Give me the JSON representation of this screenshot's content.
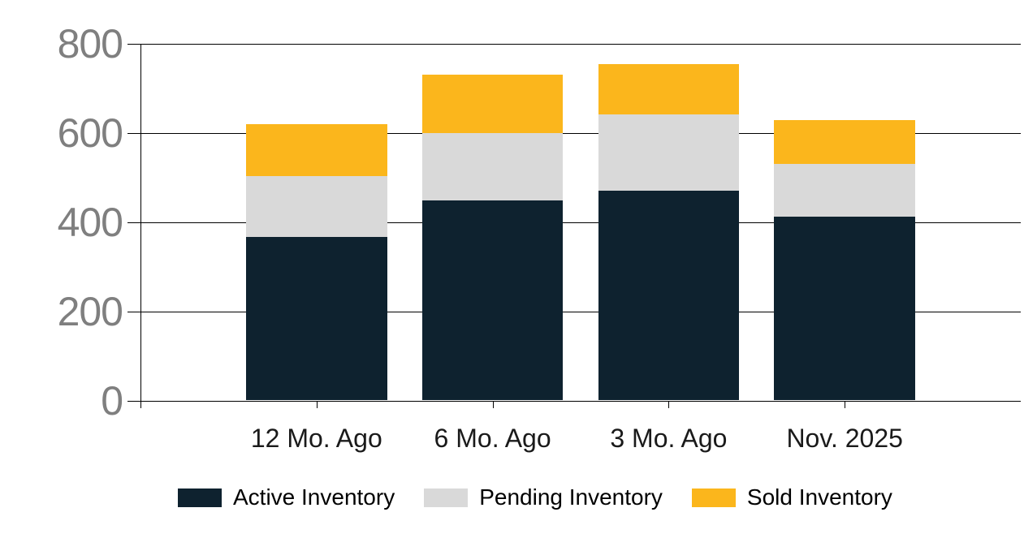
{
  "chart_data": {
    "type": "bar",
    "stacked": true,
    "categories": [
      "12 Mo. Ago",
      "6 Mo. Ago",
      "3 Mo. Ago",
      "Nov. 2025"
    ],
    "series": [
      {
        "name": "Active Inventory",
        "color": "#0E222F",
        "values": [
          367,
          449,
          470,
          412
        ]
      },
      {
        "name": "Pending Inventory",
        "color": "#D9D9D9",
        "values": [
          136,
          151,
          172,
          119
        ]
      },
      {
        "name": "Sold Inventory",
        "color": "#FBB61C",
        "values": [
          117,
          130,
          112,
          98
        ]
      }
    ],
    "stack_totals": [
      620,
      730,
      754,
      629
    ],
    "y_axis": {
      "ticks": [
        0,
        200,
        400,
        600,
        800
      ],
      "min": 0,
      "max": 800
    },
    "grid": true,
    "legend_position": "bottom"
  },
  "style": {
    "background": "#FFFFFF",
    "grid_color": "#000000",
    "axis_color": "#000000",
    "y_tick_label_color": "#7F7F7F",
    "x_label_color": "#1A1A1A",
    "legend_text_color": "#000000"
  }
}
